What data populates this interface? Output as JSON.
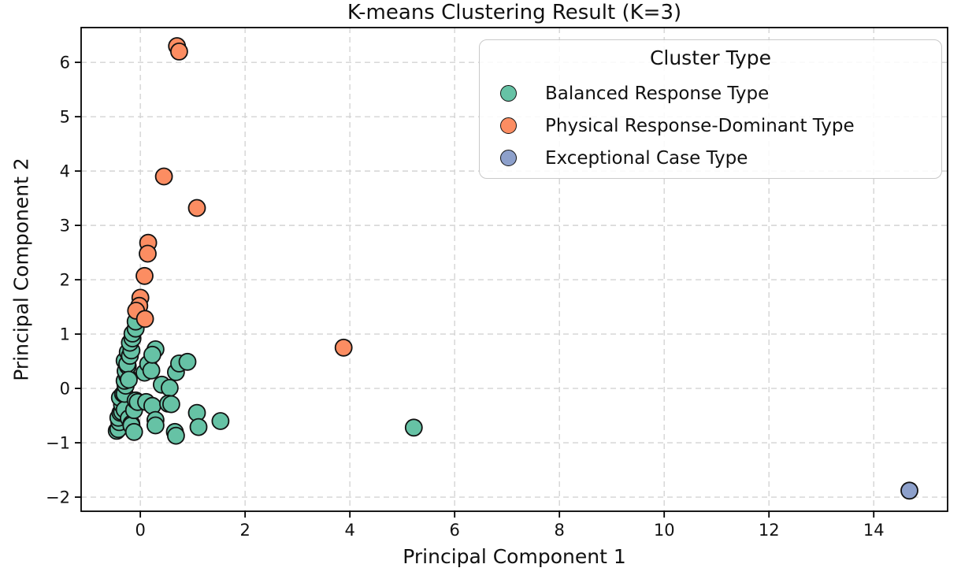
{
  "chart_data": {
    "type": "scatter",
    "title": "K-means Clustering Result (K=3)",
    "xlabel": "Principal Component 1",
    "ylabel": "Principal Component 2",
    "xlim": [
      -1.13,
      15.41
    ],
    "ylim": [
      -2.26,
      6.64
    ],
    "xticks": [
      0,
      2,
      4,
      6,
      8,
      10,
      12,
      14
    ],
    "yticks": [
      -2,
      -1,
      0,
      1,
      2,
      3,
      4,
      5,
      6
    ],
    "grid": true,
    "grid_style": "dashed",
    "grid_color": "#d4d4d4",
    "marker_edge_color": "#111111",
    "marker_diameter_px": 21,
    "legend": {
      "title": "Cluster Type",
      "position": "upper right"
    },
    "series": [
      {
        "name": "Balanced Response Type",
        "color": "#66c2a5",
        "points": [
          [
            -0.45,
            -0.78
          ],
          [
            -0.42,
            -0.75
          ],
          [
            -0.4,
            -0.62
          ],
          [
            -0.42,
            -0.54
          ],
          [
            -0.38,
            -0.45
          ],
          [
            -0.35,
            -0.43
          ],
          [
            -0.35,
            -0.3
          ],
          [
            -0.39,
            -0.17
          ],
          [
            -0.33,
            -0.1
          ],
          [
            -0.3,
            -0.39
          ],
          [
            -0.3,
            -0.1
          ],
          [
            -0.28,
            0.05
          ],
          [
            -0.3,
            0.14
          ],
          [
            -0.25,
            0.23
          ],
          [
            -0.28,
            0.32
          ],
          [
            -0.24,
            0.41
          ],
          [
            -0.3,
            0.51
          ],
          [
            -0.25,
            0.45
          ],
          [
            -0.22,
            0.16
          ],
          [
            -0.24,
            0.67
          ],
          [
            -0.2,
            0.6
          ],
          [
            -0.17,
            0.7
          ],
          [
            -0.2,
            0.84
          ],
          [
            -0.15,
            0.92
          ],
          [
            -0.15,
            1.01
          ],
          [
            -0.09,
            1.1
          ],
          [
            -0.09,
            1.23
          ],
          [
            -0.22,
            -0.55
          ],
          [
            -0.17,
            -0.65
          ],
          [
            -0.17,
            -0.68
          ],
          [
            -0.12,
            -0.8
          ],
          [
            -0.12,
            -0.4
          ],
          [
            -0.09,
            -0.22
          ],
          [
            -0.05,
            -0.25
          ],
          [
            0.08,
            0.29
          ],
          [
            0.15,
            0.45
          ],
          [
            0.21,
            0.33
          ],
          [
            0.29,
            0.72
          ],
          [
            0.23,
            0.62
          ],
          [
            0.41,
            0.07
          ],
          [
            0.56,
            0.01
          ],
          [
            0.68,
            0.3
          ],
          [
            0.74,
            0.46
          ],
          [
            0.9,
            0.49
          ],
          [
            0.11,
            -0.25
          ],
          [
            0.23,
            -0.32
          ],
          [
            0.29,
            -0.58
          ],
          [
            0.29,
            -0.68
          ],
          [
            0.53,
            -0.28
          ],
          [
            0.59,
            -0.29
          ],
          [
            0.66,
            -0.8
          ],
          [
            0.68,
            -0.87
          ],
          [
            1.08,
            -0.45
          ],
          [
            1.11,
            -0.71
          ],
          [
            1.53,
            -0.6
          ],
          [
            5.22,
            -0.72
          ]
        ]
      },
      {
        "name": "Physical Response-Dominant Type",
        "color": "#fc8d62",
        "points": [
          [
            0.7,
            6.3
          ],
          [
            0.74,
            6.2
          ],
          [
            0.45,
            3.9
          ],
          [
            1.08,
            3.32
          ],
          [
            0.15,
            2.68
          ],
          [
            0.14,
            2.48
          ],
          [
            0.08,
            2.07
          ],
          [
            0.0,
            1.67
          ],
          [
            -0.02,
            1.52
          ],
          [
            -0.08,
            1.43
          ],
          [
            0.09,
            1.28
          ],
          [
            3.88,
            0.75
          ]
        ]
      },
      {
        "name": "Exceptional Case Type",
        "color": "#8da0cb",
        "points": [
          [
            14.68,
            -1.88
          ]
        ]
      }
    ]
  }
}
